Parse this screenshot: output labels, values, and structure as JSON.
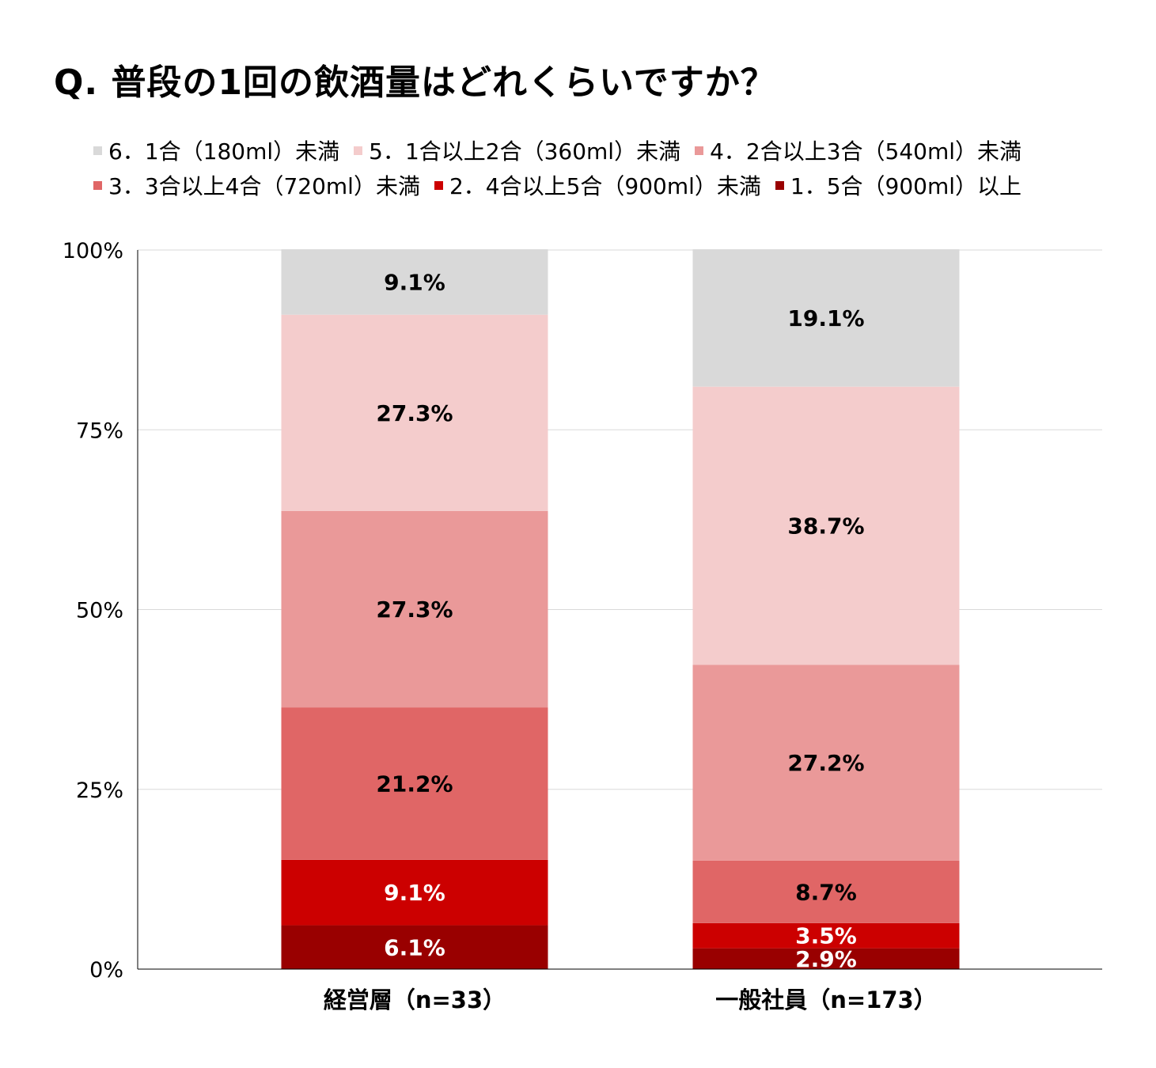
{
  "chart_data": {
    "type": "bar",
    "stacked": true,
    "title": "Q. 普段の1回の飲酒量はどれくらいですか？",
    "categories": [
      "経営層（n=33）",
      "一般社員（n=173）"
    ],
    "yticks": [
      "0%",
      "25%",
      "50%",
      "75%",
      "100%"
    ],
    "ylim": [
      0,
      100
    ],
    "grid": true,
    "legend_position": "top",
    "series": [
      {
        "name": "1．5合（900ml）以上",
        "color": "#990000",
        "label_color": "#ffffff",
        "values": [
          6.1,
          2.9
        ],
        "labels": [
          "6.1%",
          "2.9%"
        ]
      },
      {
        "name": "2．4合以上5合（900ml）未満",
        "color": "#cc0000",
        "label_color": "#ffffff",
        "values": [
          9.1,
          3.5
        ],
        "labels": [
          "9.1%",
          "3.5%"
        ]
      },
      {
        "name": "3．3合以上4合（720ml）未満",
        "color": "#e06666",
        "label_color": "#000000",
        "values": [
          21.2,
          8.7
        ],
        "labels": [
          "21.2%",
          "8.7%"
        ]
      },
      {
        "name": "4．2合以上3合（540ml）未満",
        "color": "#ea9999",
        "label_color": "#000000",
        "values": [
          27.3,
          27.2
        ],
        "labels": [
          "27.3%",
          "27.2%"
        ]
      },
      {
        "name": "5．1合以上2合（360ml）未満",
        "color": "#f4cccc",
        "label_color": "#000000",
        "values": [
          27.3,
          38.7
        ],
        "labels": [
          "27.3%",
          "38.7%"
        ]
      },
      {
        "name": "6．1合（180ml）未満",
        "color": "#d9d9d9",
        "label_color": "#000000",
        "values": [
          9.1,
          19.1
        ],
        "labels": [
          "9.1%",
          "19.1%"
        ]
      }
    ],
    "legend_rows": [
      [
        5,
        4,
        3
      ],
      [
        2,
        1,
        0
      ]
    ]
  }
}
